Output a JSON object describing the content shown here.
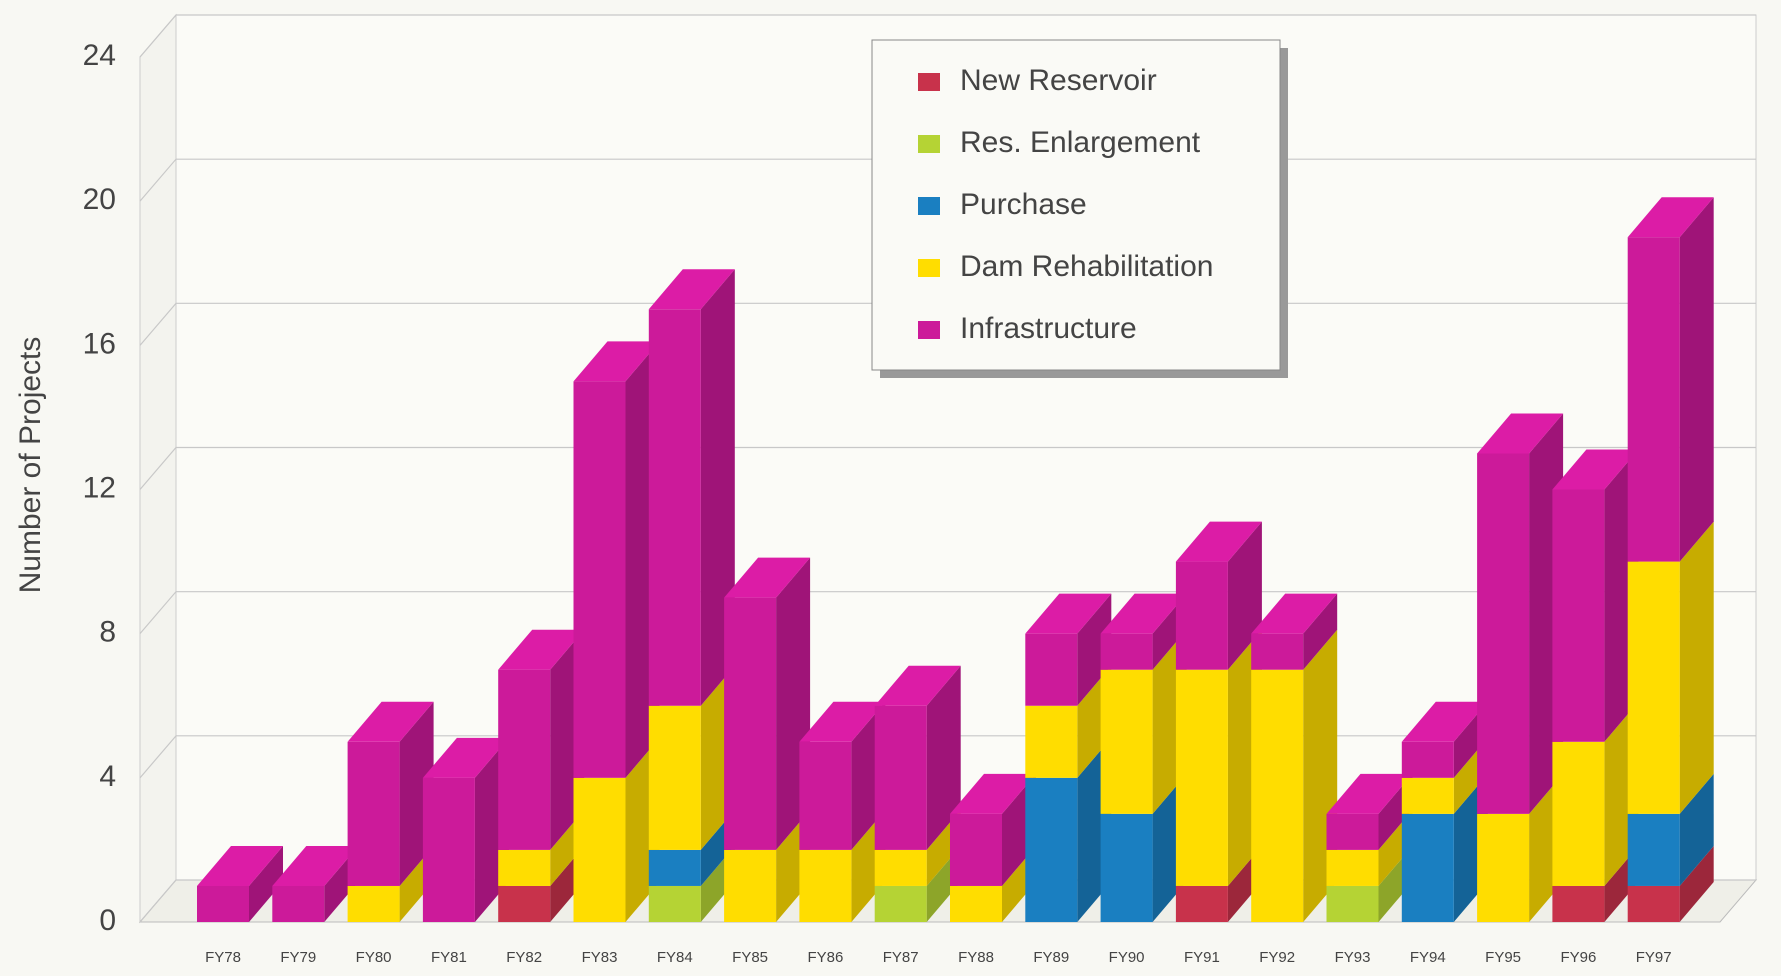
{
  "chart_data": {
    "type": "bar3d-stacked",
    "y_axis_label": "Number of Projects",
    "categories": [
      "FY78",
      "FY79",
      "FY80",
      "FY81",
      "FY82",
      "FY83",
      "FY84",
      "FY85",
      "FY86",
      "FY87",
      "FY88",
      "FY89",
      "FY90",
      "FY91",
      "FY92",
      "FY93",
      "FY94",
      "FY95",
      "FY96",
      "FY97"
    ],
    "series": [
      {
        "name": "New Reservoir",
        "color": "#c8324b",
        "values": [
          0,
          0,
          0,
          0,
          1,
          0,
          0,
          0,
          0,
          0,
          0,
          0,
          0,
          1,
          0,
          0,
          0,
          0,
          1,
          1
        ]
      },
      {
        "name": "Res. Enlargement",
        "color": "#b5d334",
        "values": [
          0,
          0,
          0,
          0,
          0,
          0,
          1,
          0,
          0,
          1,
          0,
          0,
          0,
          0,
          0,
          1,
          0,
          0,
          0,
          0
        ]
      },
      {
        "name": "Purchase",
        "color": "#1a7fc1",
        "values": [
          0,
          0,
          0,
          0,
          0,
          0,
          1,
          0,
          0,
          0,
          0,
          4,
          3,
          0,
          0,
          0,
          3,
          0,
          0,
          2
        ]
      },
      {
        "name": "Dam Rehabilitation",
        "color": "#ffdd00",
        "values": [
          0,
          0,
          1,
          0,
          1,
          4,
          4,
          2,
          2,
          1,
          1,
          2,
          4,
          6,
          7,
          1,
          1,
          3,
          4,
          7
        ]
      },
      {
        "name": "Infrastructure",
        "color": "#cc1a9a",
        "values": [
          1,
          1,
          4,
          4,
          5,
          11,
          11,
          7,
          3,
          4,
          2,
          2,
          1,
          3,
          1,
          1,
          1,
          10,
          7,
          9
        ]
      }
    ],
    "ylim": [
      0,
      24
    ],
    "yticks": [
      0,
      4,
      8,
      12,
      16,
      20,
      24
    ],
    "grid": true
  }
}
